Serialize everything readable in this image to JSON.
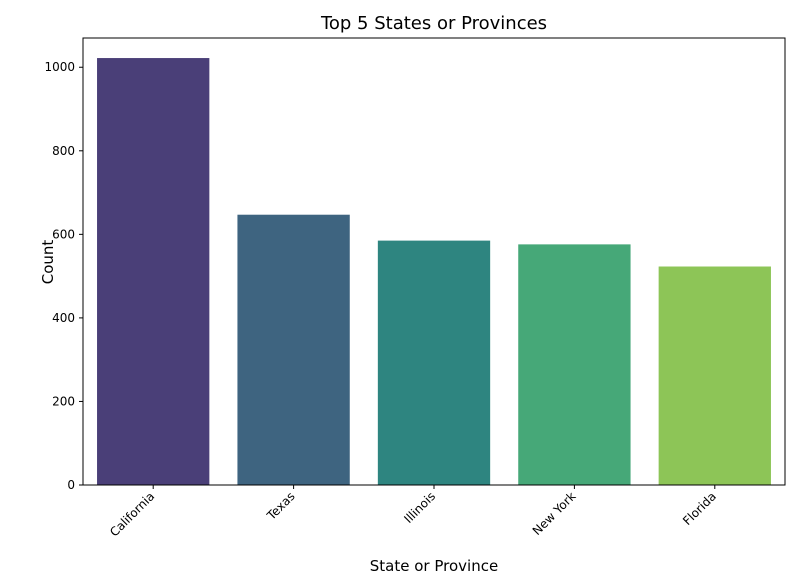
{
  "chart_data": {
    "type": "bar",
    "title": "Top 5 States or Provinces",
    "xlabel": "State or Province",
    "ylabel": "Count",
    "categories": [
      "California",
      "Texas",
      "Illinois",
      "New York",
      "Florida"
    ],
    "values": [
      1022,
      647,
      585,
      576,
      523
    ],
    "colors": [
      "#4a3f78",
      "#3e6480",
      "#2e8580",
      "#46a878",
      "#8dc557"
    ],
    "ylim": [
      0,
      1070
    ],
    "yticks": [
      0,
      200,
      400,
      600,
      800,
      1000
    ],
    "grid": false,
    "legend": "none"
  }
}
